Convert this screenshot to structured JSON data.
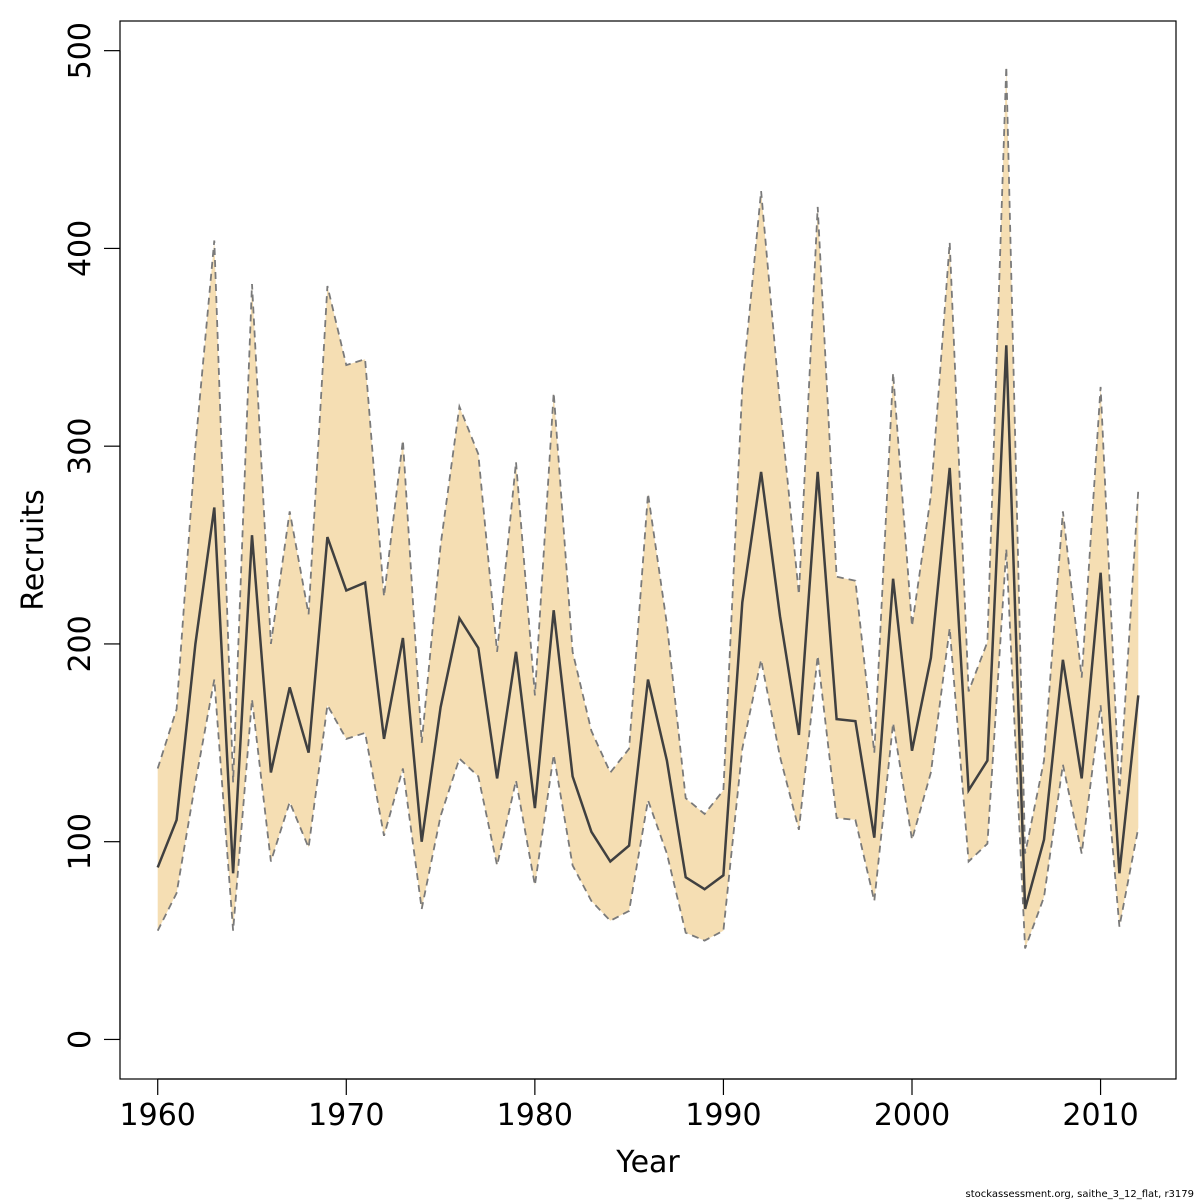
{
  "chart_data": {
    "type": "area",
    "title": "",
    "xlabel": "Year",
    "ylabel": "Recruits",
    "xlim": [
      1958,
      2014
    ],
    "ylim": [
      -20,
      515
    ],
    "xticks": [
      1960,
      1970,
      1980,
      1990,
      2000,
      2010
    ],
    "yticks": [
      0,
      100,
      200,
      300,
      400,
      500
    ],
    "grid": false,
    "band_color": "#f5deb3",
    "line_color": "#404040",
    "bound_color": "#7a7a7a",
    "x": [
      1960,
      1961,
      1962,
      1963,
      1964,
      1965,
      1966,
      1967,
      1968,
      1969,
      1970,
      1971,
      1972,
      1973,
      1974,
      1975,
      1976,
      1977,
      1978,
      1979,
      1980,
      1981,
      1982,
      1983,
      1984,
      1985,
      1986,
      1987,
      1988,
      1989,
      1990,
      1991,
      1992,
      1993,
      1994,
      1995,
      1996,
      1997,
      1998,
      1999,
      2000,
      2001,
      2002,
      2003,
      2004,
      2005,
      2006,
      2007,
      2008,
      2009,
      2010,
      2011,
      2012
    ],
    "series": [
      {
        "name": "",
        "style": "solid",
        "values": [
          87,
          111,
          200,
          269,
          84,
          255,
          135,
          178,
          145,
          254,
          227,
          231,
          152,
          203,
          100,
          168,
          213,
          198,
          132,
          196,
          117,
          217,
          133,
          105,
          90,
          98,
          182,
          141,
          82,
          76,
          83,
          221,
          287,
          214,
          154,
          287,
          162,
          161,
          102,
          233,
          146,
          193,
          289,
          126,
          141,
          351,
          66,
          101,
          192,
          132,
          236,
          84,
          174
        ]
      },
      {
        "name": "",
        "style": "dashed",
        "values": [
          55,
          74,
          130,
          182,
          55,
          172,
          90,
          120,
          97,
          169,
          152,
          155,
          103,
          137,
          66,
          113,
          142,
          133,
          88,
          131,
          78,
          144,
          88,
          70,
          60,
          65,
          121,
          94,
          54,
          50,
          55,
          147,
          192,
          143,
          106,
          194,
          112,
          111,
          70,
          160,
          101,
          135,
          208,
          90,
          99,
          248,
          46,
          72,
          139,
          94,
          169,
          57,
          107
        ]
      },
      {
        "name": "",
        "style": "dashed",
        "values": [
          137,
          167,
          300,
          404,
          130,
          382,
          200,
          267,
          215,
          381,
          341,
          344,
          224,
          303,
          150,
          250,
          320,
          296,
          196,
          292,
          174,
          327,
          196,
          156,
          135,
          147,
          276,
          210,
          122,
          114,
          126,
          330,
          429,
          321,
          225,
          421,
          234,
          232,
          145,
          337,
          209,
          275,
          403,
          176,
          201,
          492,
          94,
          141,
          267,
          183,
          330,
          124,
          278
        ]
      }
    ]
  },
  "footer_note": "stockassessment.org, saithe_3_12_flat, r3179"
}
